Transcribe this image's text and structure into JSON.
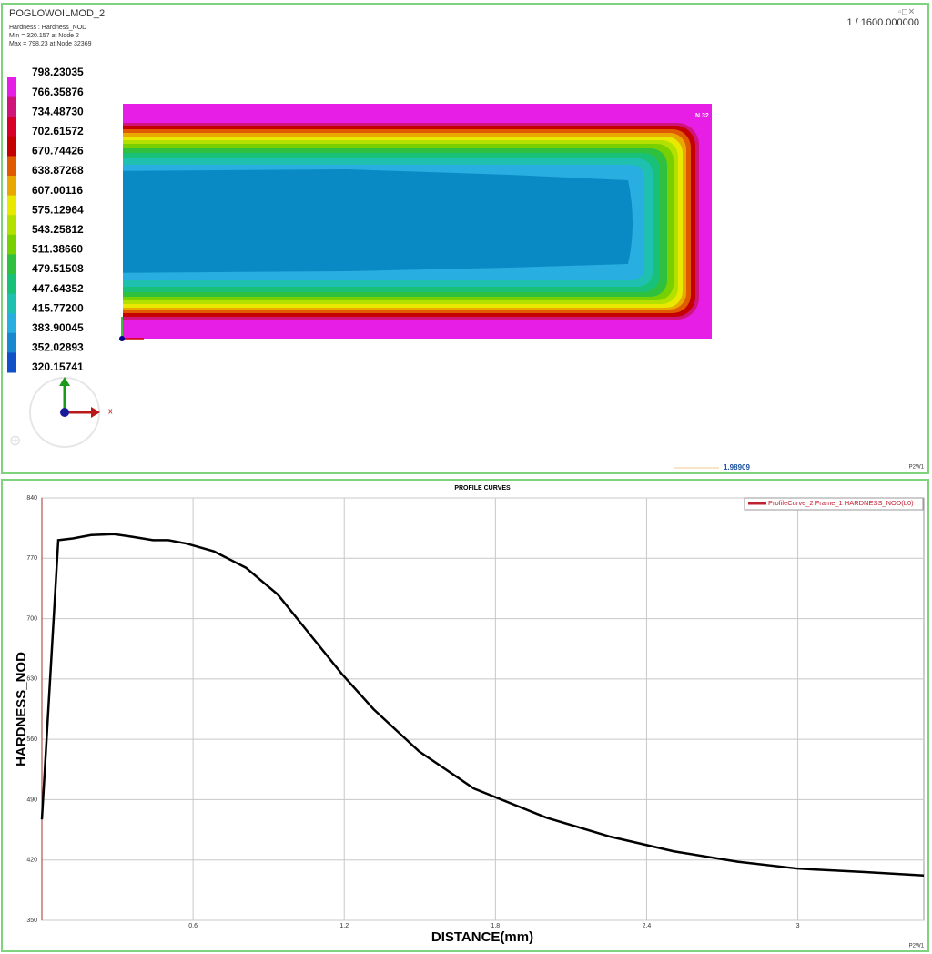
{
  "viewport": {
    "title": "POGLOWOILMOD_2",
    "info": [
      "Hardness : Hardness_NOD",
      "Min = 320.157 at Node 2",
      "Max = 798.23 at Node 32369"
    ],
    "frame": "1 / 1600.000000",
    "legend_labels": [
      "798.23035",
      "766.35876",
      "734.48730",
      "702.61572",
      "670.74426",
      "638.87268",
      "607.00116",
      "575.12964",
      "543.25812",
      "511.38660",
      "479.51508",
      "447.64352",
      "415.77200",
      "383.90045",
      "352.02893",
      "320.15741"
    ],
    "band_colors": [
      "#e61ee6",
      "#d0147a",
      "#d8002a",
      "#c40000",
      "#e05a00",
      "#e8a800",
      "#e8e800",
      "#b4e000",
      "#78d000",
      "#30c040",
      "#18c078",
      "#20c0b0",
      "#28aee0",
      "#1888d0",
      "#1050c8"
    ],
    "node_label": "N.32",
    "axis_x": "x",
    "scale_value": "1.98909",
    "window_id": "P2W1"
  },
  "chart_data": {
    "type": "line",
    "title": "PROFILE CURVES",
    "x_label": "DISTANCE(mm)",
    "y_label": "HARDNESS_NOD",
    "window_id": "P2W1",
    "x": [
      0,
      0.065,
      0.123,
      0.195,
      0.286,
      0.358,
      0.441,
      0.502,
      0.575,
      0.683,
      0.81,
      0.936,
      1.063,
      1.19,
      1.316,
      1.497,
      1.714,
      2.003,
      2.256,
      2.508,
      2.761,
      3.0,
      3.267,
      3.5
    ],
    "series": [
      {
        "name": "ProfileCurve_2 Frame_1 HARDNESS_NOD(L0)",
        "color": "#000000",
        "values": [
          467,
          791,
          793,
          797,
          798,
          795,
          791,
          791,
          787,
          778,
          759,
          728,
          682,
          636,
          595,
          546,
          503,
          469,
          447,
          430,
          418,
          410,
          406,
          402
        ]
      }
    ],
    "xlim": [
      0,
      3.5
    ],
    "xticks": [
      0.6,
      1.2,
      1.8,
      2.4,
      3
    ],
    "ylim": [
      350,
      840
    ],
    "yticks": [
      350,
      420,
      490,
      560,
      630,
      700,
      770,
      840
    ],
    "grid": true,
    "legend": "top-right"
  }
}
